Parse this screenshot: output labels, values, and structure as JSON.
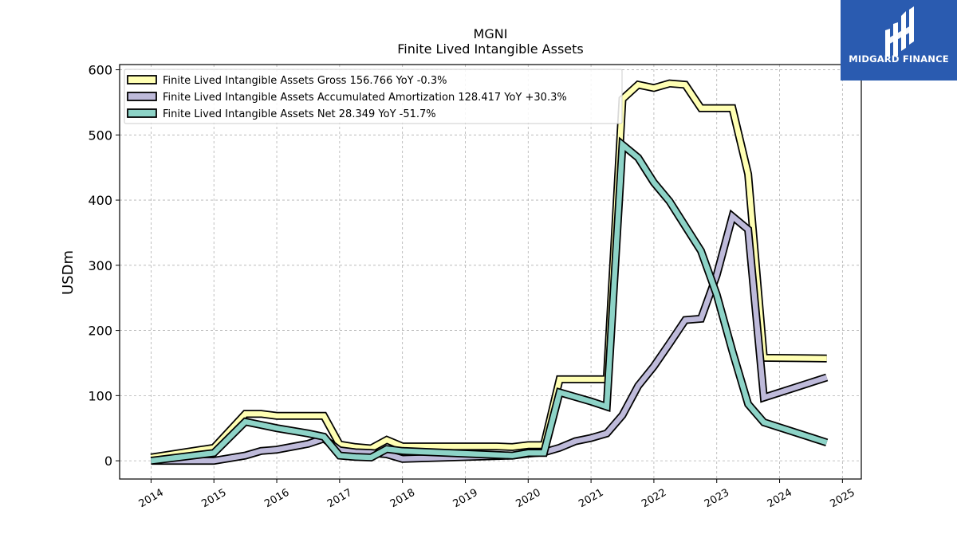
{
  "chart_data": {
    "type": "line",
    "title": "MGNI",
    "subtitle": "Finite Lived Intangible Assets",
    "ylabel": "USDm",
    "xlabel": "",
    "xlim": [
      2013.5,
      2025.3
    ],
    "ylim": [
      -28,
      608
    ],
    "yticks": [
      0,
      100,
      200,
      300,
      400,
      500,
      600
    ],
    "xticks": [
      "2014",
      "2015",
      "2016",
      "2017",
      "2018",
      "2019",
      "2020",
      "2021",
      "2022",
      "2023",
      "2024",
      "2025"
    ],
    "grid": true,
    "legend_position": "top-left",
    "series": [
      {
        "name": "Finite Lived Intangible Assets Gross  156.766 YoY -0.3%",
        "color": "#ffffb3",
        "points": [
          [
            2014.0,
            5
          ],
          [
            2015.0,
            20
          ],
          [
            2015.5,
            72
          ],
          [
            2015.75,
            72
          ],
          [
            2016.0,
            69
          ],
          [
            2016.5,
            69
          ],
          [
            2016.75,
            69
          ],
          [
            2017.0,
            25
          ],
          [
            2017.25,
            21
          ],
          [
            2017.5,
            19
          ],
          [
            2017.75,
            32
          ],
          [
            2018.0,
            22
          ],
          [
            2019.5,
            22
          ],
          [
            2019.75,
            21
          ],
          [
            2020.0,
            24
          ],
          [
            2020.25,
            24
          ],
          [
            2020.5,
            125
          ],
          [
            2021.25,
            125
          ],
          [
            2021.5,
            555
          ],
          [
            2021.75,
            577
          ],
          [
            2022.0,
            572
          ],
          [
            2022.25,
            579
          ],
          [
            2022.5,
            577
          ],
          [
            2022.75,
            541
          ],
          [
            2023.25,
            541
          ],
          [
            2023.5,
            440
          ],
          [
            2023.75,
            158
          ],
          [
            2024.75,
            157
          ]
        ]
      },
      {
        "name": "Finite Lived Intangible Assets Accumulated Amortization  128.417 YoY +30.3%",
        "color": "#bebada",
        "points": [
          [
            2014.0,
            0
          ],
          [
            2015.0,
            0
          ],
          [
            2015.5,
            8
          ],
          [
            2015.75,
            15
          ],
          [
            2016.0,
            17
          ],
          [
            2016.5,
            26
          ],
          [
            2016.75,
            34
          ],
          [
            2017.0,
            16
          ],
          [
            2017.25,
            13
          ],
          [
            2017.5,
            12
          ],
          [
            2017.75,
            10
          ],
          [
            2018.0,
            3
          ],
          [
            2019.75,
            8
          ],
          [
            2020.0,
            11
          ],
          [
            2020.25,
            13
          ],
          [
            2020.5,
            20
          ],
          [
            2020.75,
            30
          ],
          [
            2021.0,
            35
          ],
          [
            2021.25,
            42
          ],
          [
            2021.5,
            70
          ],
          [
            2021.75,
            115
          ],
          [
            2022.0,
            145
          ],
          [
            2022.25,
            180
          ],
          [
            2022.5,
            216
          ],
          [
            2022.75,
            218
          ],
          [
            2023.0,
            285
          ],
          [
            2023.25,
            375
          ],
          [
            2023.5,
            355
          ],
          [
            2023.75,
            97
          ],
          [
            2024.75,
            128
          ]
        ]
      },
      {
        "name": "Finite Lived Intangible Assets Net  28.349 YoY -51.7%",
        "color": "#8dd3c7",
        "points": [
          [
            2014.0,
            0
          ],
          [
            2015.0,
            12
          ],
          [
            2015.5,
            60
          ],
          [
            2015.75,
            55
          ],
          [
            2016.0,
            50
          ],
          [
            2016.5,
            42
          ],
          [
            2016.75,
            37
          ],
          [
            2017.0,
            8
          ],
          [
            2017.25,
            6
          ],
          [
            2017.5,
            5
          ],
          [
            2017.75,
            18
          ],
          [
            2018.0,
            15
          ],
          [
            2019.75,
            8
          ],
          [
            2020.0,
            12
          ],
          [
            2020.25,
            12
          ],
          [
            2020.5,
            105
          ],
          [
            2020.75,
            98
          ],
          [
            2021.0,
            91
          ],
          [
            2021.25,
            83
          ],
          [
            2021.5,
            485
          ],
          [
            2021.75,
            465
          ],
          [
            2022.0,
            427
          ],
          [
            2022.25,
            398
          ],
          [
            2022.5,
            360
          ],
          [
            2022.75,
            322
          ],
          [
            2023.0,
            255
          ],
          [
            2023.25,
            168
          ],
          [
            2023.5,
            87
          ],
          [
            2023.75,
            59
          ],
          [
            2024.75,
            28
          ]
        ]
      }
    ]
  },
  "logo": {
    "brand": "MIDGARD FINANCE",
    "background": "#2a5bb0"
  }
}
